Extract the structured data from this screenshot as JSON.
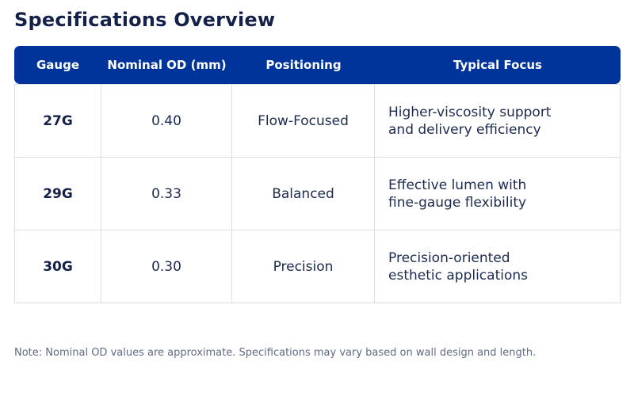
{
  "title": "Specifications Overview",
  "table": {
    "headers": [
      "Gauge",
      "Nominal OD (mm)",
      "Positioning",
      "Typical Focus"
    ],
    "rows": [
      {
        "gauge": "27G",
        "od": "0.40",
        "positioning": "Flow-Focused",
        "focus": [
          "Higher-viscosity support",
          "and delivery efficiency"
        ]
      },
      {
        "gauge": "29G",
        "od": "0.33",
        "positioning": "Balanced",
        "focus": [
          "Effective lumen with",
          "fine-gauge flexibility"
        ]
      },
      {
        "gauge": "30G",
        "od": "0.30",
        "positioning": "Precision",
        "focus": [
          "Precision-oriented",
          "esthetic applications"
        ]
      }
    ]
  },
  "note": "Note: Nominal OD values are approximate. Specifications may vary based on wall design and length.",
  "colors": {
    "header_bg": "#00349a",
    "header_text": "#ffffff",
    "title": "#14224a",
    "body_text": "#1b2a4e",
    "grid": "#d9dee8",
    "note": "#5f6b85"
  }
}
